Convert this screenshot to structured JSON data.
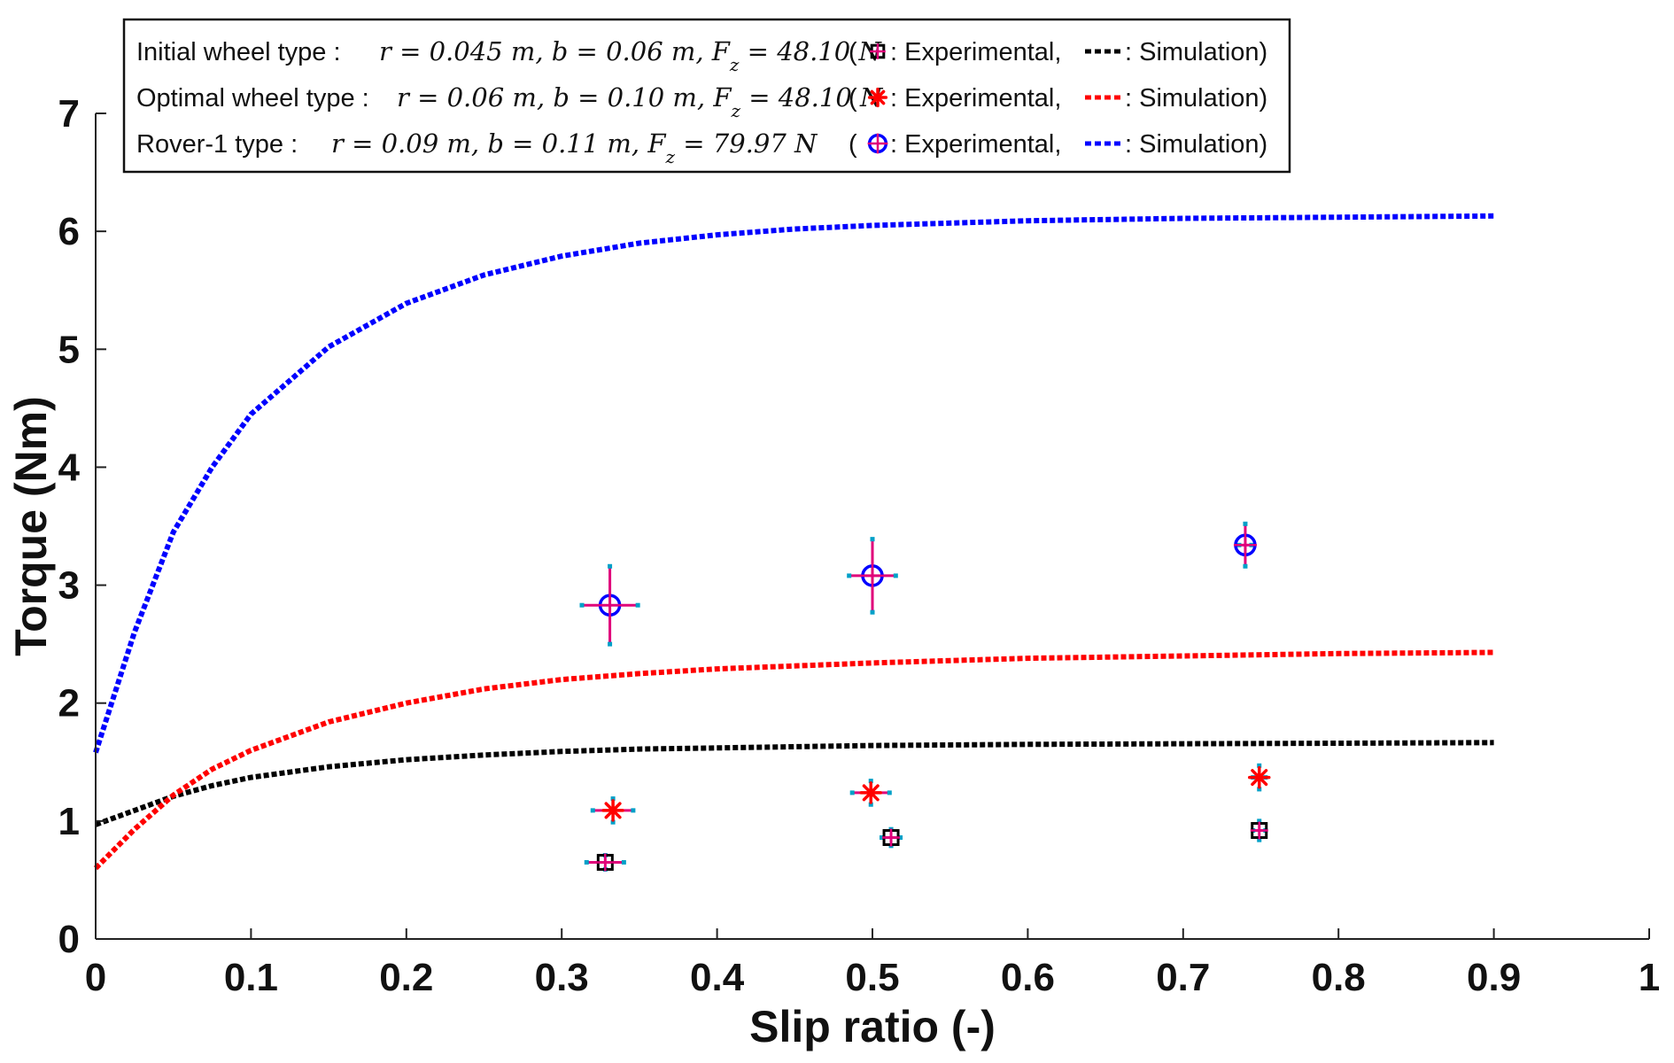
{
  "chart_data": {
    "type": "line",
    "title": "",
    "xlabel": "Slip ratio (-)",
    "ylabel": "Torque (Nm)",
    "xlim": [
      0,
      1
    ],
    "ylim": [
      0,
      7
    ],
    "xticks": [
      "0",
      "0.1",
      "0.2",
      "0.3",
      "0.4",
      "0.5",
      "0.6",
      "0.7",
      "0.8",
      "0.9",
      "1"
    ],
    "yticks": [
      "0",
      "1",
      "2",
      "3",
      "4",
      "5",
      "6",
      "7"
    ],
    "grid": false,
    "legend_position": "top-left",
    "colors": {
      "initial": "#000000",
      "optimal": "#ff0000",
      "rover": "#0000ff",
      "errorbar": "#e0007a",
      "cap": "#00a0c8"
    },
    "simulation_series": [
      {
        "name": "Initial wheel type",
        "key": "initial",
        "x": [
          0,
          0.025,
          0.05,
          0.075,
          0.1,
          0.15,
          0.2,
          0.25,
          0.3,
          0.35,
          0.4,
          0.5,
          0.6,
          0.7,
          0.8,
          0.9
        ],
        "y": [
          0.97,
          1.09,
          1.21,
          1.3,
          1.37,
          1.46,
          1.52,
          1.56,
          1.59,
          1.61,
          1.62,
          1.64,
          1.65,
          1.655,
          1.66,
          1.665
        ]
      },
      {
        "name": "Optimal wheel type",
        "key": "optimal",
        "x": [
          0,
          0.025,
          0.05,
          0.075,
          0.1,
          0.15,
          0.2,
          0.25,
          0.3,
          0.35,
          0.4,
          0.5,
          0.6,
          0.7,
          0.8,
          0.9
        ],
        "y": [
          0.6,
          0.93,
          1.22,
          1.44,
          1.6,
          1.84,
          2.0,
          2.12,
          2.2,
          2.25,
          2.29,
          2.34,
          2.38,
          2.4,
          2.42,
          2.43
        ]
      },
      {
        "name": "Rover-1 type",
        "key": "rover",
        "x": [
          0,
          0.025,
          0.05,
          0.075,
          0.1,
          0.15,
          0.2,
          0.25,
          0.3,
          0.35,
          0.4,
          0.45,
          0.5,
          0.6,
          0.7,
          0.8,
          0.9
        ],
        "y": [
          1.58,
          2.6,
          3.45,
          4.0,
          4.45,
          5.02,
          5.39,
          5.63,
          5.79,
          5.9,
          5.97,
          6.02,
          6.05,
          6.09,
          6.11,
          6.12,
          6.13
        ]
      }
    ],
    "experimental_series": [
      {
        "name": "Initial wheel type",
        "key": "initial",
        "marker": "square",
        "points": [
          {
            "x": 0.328,
            "y": 0.65,
            "yerr": 0.06,
            "xerr": 0.012
          },
          {
            "x": 0.512,
            "y": 0.86,
            "yerr": 0.07,
            "xerr": 0.006
          },
          {
            "x": 0.749,
            "y": 0.92,
            "yerr": 0.08,
            "xerr": 0.004
          }
        ]
      },
      {
        "name": "Optimal wheel type",
        "key": "optimal",
        "marker": "star",
        "points": [
          {
            "x": 0.333,
            "y": 1.09,
            "yerr": 0.1,
            "xerr": 0.013
          },
          {
            "x": 0.499,
            "y": 1.24,
            "yerr": 0.1,
            "xerr": 0.012
          },
          {
            "x": 0.749,
            "y": 1.37,
            "yerr": 0.1,
            "xerr": 0.004
          }
        ]
      },
      {
        "name": "Rover-1 type",
        "key": "rover",
        "marker": "circle-plus",
        "points": [
          {
            "x": 0.331,
            "y": 2.83,
            "yerr": 0.33,
            "xerr": 0.018
          },
          {
            "x": 0.5,
            "y": 3.08,
            "yerr": 0.31,
            "xerr": 0.015
          },
          {
            "x": 0.74,
            "y": 3.34,
            "yerr": 0.18,
            "xerr": 0.004
          }
        ]
      }
    ],
    "legend": {
      "rows": [
        {
          "key": "initial",
          "name": "Initial wheel type :",
          "params": "r = 0.045 m, b = 0.06 m, F_z = 48.10 N",
          "p_r": "0.045",
          "p_b": "0.06",
          "p_fz": "48.10",
          "marker": "square",
          "open": "(",
          "exp_label": ": Experimental,",
          "sim_label": ": Simulation)"
        },
        {
          "key": "optimal",
          "name": "Optimal wheel type :",
          "params": "r = 0.06 m, b = 0.10 m, F_z = 48.10 N",
          "p_r": "0.06",
          "p_b": "0.10",
          "p_fz": "48.10",
          "marker": "star",
          "open": "(",
          "exp_label": ": Experimental,",
          "sim_label": ": Simulation)"
        },
        {
          "key": "rover",
          "name": "Rover-1 type :",
          "params": "r = 0.09 m, b = 0.11 m, F_z = 79.97 N",
          "p_r": "0.09",
          "p_b": "0.11",
          "p_fz": "79.97",
          "marker": "circle-plus",
          "open": "(",
          "exp_label": ": Experimental,",
          "sim_label": ": Simulation)"
        }
      ]
    }
  }
}
